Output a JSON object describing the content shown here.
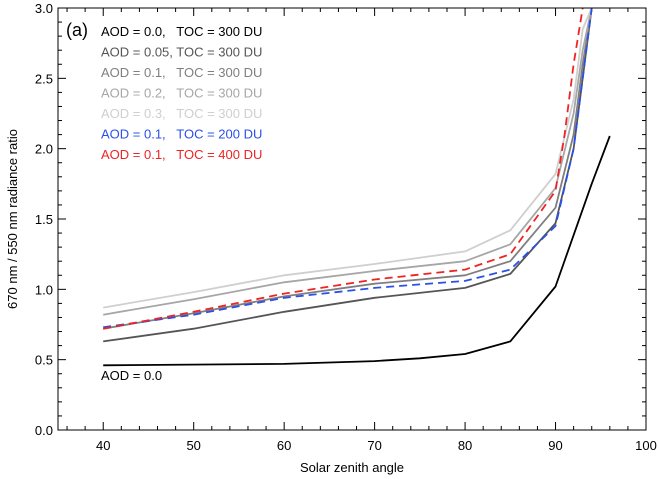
{
  "chart_data": {
    "type": "line",
    "panel_label": "(a)",
    "xlabel": "Solar zenith angle",
    "ylabel": "670 nm / 550 nm radiance ratio",
    "xlim": [
      35,
      100
    ],
    "ylim": [
      0.0,
      3.0
    ],
    "xticks": [
      "40",
      "50",
      "60",
      "70",
      "80",
      "90",
      "100"
    ],
    "yticks": [
      "0.0",
      "0.5",
      "1.0",
      "1.5",
      "2.0",
      "2.5",
      "3.0"
    ],
    "legend_position": "top-left",
    "annotation": "AOD = 0.0",
    "series": [
      {
        "name": "AOD = 0.0,   TOC = 300 DU",
        "color": "#000000",
        "dash": false,
        "x": [
          40,
          60,
          70,
          75,
          80,
          85,
          90,
          94,
          96
        ],
        "y": [
          0.46,
          0.47,
          0.49,
          0.51,
          0.54,
          0.63,
          1.02,
          1.75,
          2.09
        ]
      },
      {
        "name": "AOD = 0.05, TOC = 300 DU",
        "color": "#555555",
        "dash": false,
        "x": [
          40,
          50,
          60,
          70,
          80,
          85,
          90,
          92,
          93,
          94
        ],
        "y": [
          0.63,
          0.72,
          0.84,
          0.94,
          1.01,
          1.11,
          1.47,
          2.0,
          2.5,
          3.0
        ]
      },
      {
        "name": "AOD = 0.1,   TOC = 300 DU",
        "color": "#7f7f7f",
        "dash": false,
        "x": [
          40,
          50,
          60,
          70,
          80,
          85,
          90,
          92,
          93,
          94
        ],
        "y": [
          0.72,
          0.83,
          0.95,
          1.04,
          1.1,
          1.2,
          1.58,
          2.1,
          2.6,
          3.0
        ]
      },
      {
        "name": "AOD = 0.2,   TOC = 300 DU",
        "color": "#a6a6a6",
        "dash": false,
        "x": [
          40,
          50,
          60,
          70,
          80,
          85,
          90,
          92,
          93,
          94
        ],
        "y": [
          0.82,
          0.93,
          1.05,
          1.13,
          1.2,
          1.32,
          1.72,
          2.25,
          2.7,
          3.0
        ]
      },
      {
        "name": "AOD = 0.3,   TOC = 300 DU",
        "color": "#cfcfcf",
        "dash": false,
        "x": [
          40,
          50,
          60,
          70,
          80,
          85,
          90,
          92,
          93,
          94
        ],
        "y": [
          0.87,
          0.98,
          1.1,
          1.18,
          1.27,
          1.42,
          1.82,
          2.35,
          2.85,
          3.0
        ]
      },
      {
        "name": "AOD = 0.1,   TOC = 200 DU",
        "color": "#2b50e8",
        "dash": true,
        "x": [
          40,
          50,
          60,
          70,
          80,
          85,
          90,
          92,
          93,
          94
        ],
        "y": [
          0.73,
          0.82,
          0.94,
          1.01,
          1.06,
          1.14,
          1.45,
          2.0,
          2.5,
          3.0
        ]
      },
      {
        "name": "AOD = 0.1,   TOC = 400 DU",
        "color": "#ee2424",
        "dash": true,
        "x": [
          40,
          50,
          60,
          70,
          80,
          85,
          90,
          91,
          92,
          93
        ],
        "y": [
          0.72,
          0.84,
          0.97,
          1.07,
          1.14,
          1.25,
          1.7,
          2.1,
          2.6,
          3.0
        ]
      }
    ]
  }
}
